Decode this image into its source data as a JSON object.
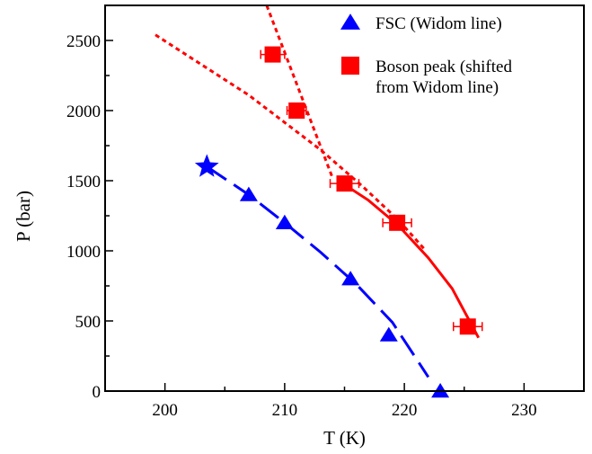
{
  "chart_data": {
    "type": "scatter",
    "xlabel": "T (K)",
    "ylabel": "P (bar)",
    "xlim": [
      195,
      235
    ],
    "ylim": [
      0,
      2750
    ],
    "x_ticks": [
      200,
      210,
      220,
      230
    ],
    "y_ticks": [
      0,
      500,
      1000,
      1500,
      2000,
      2500
    ],
    "grid": false,
    "legend_position": "top-right",
    "series": [
      {
        "name": "FSC (Widom line)",
        "marker": "triangle",
        "color": "#0000ff",
        "points": [
          {
            "x": 207.0,
            "y": 1400
          },
          {
            "x": 210.0,
            "y": 1200
          },
          {
            "x": 215.5,
            "y": 800
          },
          {
            "x": 218.7,
            "y": 400
          },
          {
            "x": 223.0,
            "y": 0
          }
        ],
        "star_point": {
          "x": 203.5,
          "y": 1600
        },
        "fit_line": {
          "style": "dashed",
          "points": [
            [
              203.5,
              1600
            ],
            [
              207,
              1400
            ],
            [
              210,
              1200
            ],
            [
              213,
              990
            ],
            [
              216,
              760
            ],
            [
              219,
              490
            ],
            [
              222,
              100
            ]
          ]
        }
      },
      {
        "name": "Boson peak (shifted from Widom line)",
        "marker": "square",
        "color": "#ff0000",
        "points": [
          {
            "x": 209.0,
            "y": 2400,
            "xerr": 1.0
          },
          {
            "x": 211.0,
            "y": 2000,
            "xerr": 0.8
          },
          {
            "x": 215.0,
            "y": 1480,
            "xerr": 1.2
          },
          {
            "x": 219.4,
            "y": 1200,
            "xerr": 1.2
          },
          {
            "x": 225.3,
            "y": 460,
            "xerr": 1.2
          }
        ],
        "fit_line_solid": {
          "style": "solid",
          "points": [
            [
              214.5,
              1500
            ],
            [
              217,
              1360
            ],
            [
              219.5,
              1180
            ],
            [
              222,
              950
            ],
            [
              224,
              730
            ],
            [
              226.2,
              380
            ]
          ]
        },
        "fit_line_dotted_steep": {
          "style": "dotted",
          "points": [
            [
              208.5,
              2750
            ],
            [
              214,
              1520
            ]
          ]
        },
        "fit_line_dotted_shallow": {
          "style": "dotted",
          "points": [
            [
              199.2,
              2540
            ],
            [
              207,
              2110
            ],
            [
              213,
              1720
            ],
            [
              216.5,
              1460
            ],
            [
              219.5,
              1220
            ],
            [
              221.8,
              1000
            ]
          ]
        }
      }
    ],
    "legend": [
      {
        "label_lines": [
          "FSC (Widom line)"
        ],
        "marker": "triangle",
        "color": "#0000ff"
      },
      {
        "label_lines": [
          "Boson peak (shifted",
          "from Widom line)"
        ],
        "marker": "square",
        "color": "#ff0000"
      }
    ]
  }
}
